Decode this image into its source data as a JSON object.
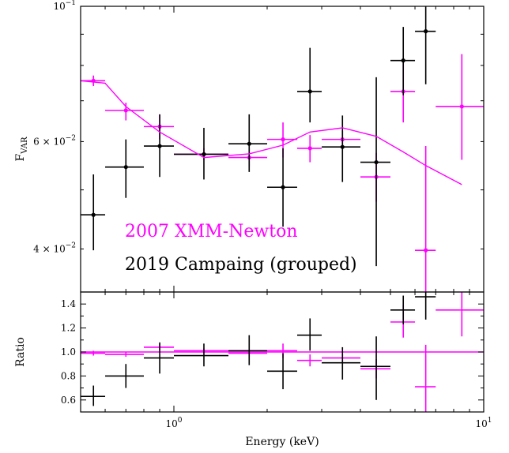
{
  "chart_data": [
    {
      "type": "scatter",
      "panel": "top",
      "ylabel_main": "F",
      "ylabel_sub": "VAR",
      "xscale": "log",
      "yscale": "log",
      "xlim": [
        0.5,
        10
      ],
      "ylim": [
        0.034,
        0.1
      ],
      "ytick_labels": [
        {
          "value": 0.1,
          "mantissa": "10",
          "exp": "−1",
          "text": "10⁻¹"
        },
        {
          "value": 0.06,
          "mantissa": "6 × 10",
          "exp": "−2",
          "text": "6 × 10⁻²"
        },
        {
          "value": 0.04,
          "mantissa": "4 × 10",
          "exp": "−2",
          "text": "4 × 10⁻²"
        }
      ],
      "legend": {
        "placement": "lower-left",
        "entries": [
          "2007 XMM-Newton",
          "2019 Campaing (grouped)"
        ]
      },
      "series": [
        {
          "name": "2007 XMM-Newton",
          "color": "#ff00ff",
          "points": [
            {
              "x": 0.55,
              "xlo": 0.5,
              "xhi": 0.6,
              "y": 0.0755,
              "ylo": 0.074,
              "yhi": 0.077
            },
            {
              "x": 0.7,
              "xlo": 0.6,
              "xhi": 0.8,
              "y": 0.0675,
              "ylo": 0.065,
              "yhi": 0.0695
            },
            {
              "x": 0.9,
              "xlo": 0.8,
              "xhi": 1.0,
              "y": 0.0635,
              "ylo": 0.0605,
              "yhi": 0.0665
            },
            {
              "x": 1.25,
              "xlo": 1.0,
              "xhi": 1.5,
              "y": 0.0572,
              "ylo": 0.056,
              "yhi": 0.0585
            },
            {
              "x": 1.75,
              "xlo": 1.5,
              "xhi": 2.0,
              "y": 0.0565,
              "ylo": 0.0545,
              "yhi": 0.0585
            },
            {
              "x": 2.25,
              "xlo": 2.0,
              "xhi": 2.5,
              "y": 0.0605,
              "ylo": 0.0565,
              "yhi": 0.0645
            },
            {
              "x": 2.75,
              "xlo": 2.5,
              "xhi": 3.0,
              "y": 0.0585,
              "ylo": 0.0555,
              "yhi": 0.0615
            },
            {
              "x": 3.5,
              "xlo": 3.0,
              "xhi": 4.0,
              "y": 0.0605,
              "ylo": 0.0585,
              "yhi": 0.0625
            },
            {
              "x": 4.5,
              "xlo": 4.0,
              "xhi": 5.0,
              "y": 0.0525,
              "ylo": 0.0478,
              "yhi": 0.0575
            },
            {
              "x": 5.5,
              "xlo": 5.0,
              "xhi": 6.0,
              "y": 0.0725,
              "ylo": 0.0645,
              "yhi": 0.0815
            },
            {
              "x": 6.5,
              "xlo": 6.0,
              "xhi": 7.0,
              "y": 0.0398,
              "ylo": 0.034,
              "yhi": 0.059
            },
            {
              "x": 8.5,
              "xlo": 7.0,
              "xhi": 10.0,
              "y": 0.0685,
              "ylo": 0.056,
              "yhi": 0.0835
            }
          ]
        },
        {
          "name": "2019 Campaing (grouped)",
          "color": "#000000",
          "points": [
            {
              "x": 0.55,
              "xlo": 0.5,
              "xhi": 0.6,
              "y": 0.0455,
              "ylo": 0.0398,
              "yhi": 0.053
            },
            {
              "x": 0.7,
              "xlo": 0.6,
              "xhi": 0.8,
              "y": 0.0545,
              "ylo": 0.0485,
              "yhi": 0.0605
            },
            {
              "x": 0.9,
              "xlo": 0.8,
              "xhi": 1.0,
              "y": 0.059,
              "ylo": 0.0525,
              "yhi": 0.0665
            },
            {
              "x": 1.25,
              "xlo": 1.0,
              "xhi": 1.5,
              "y": 0.0572,
              "ylo": 0.052,
              "yhi": 0.0632
            },
            {
              "x": 1.75,
              "xlo": 1.5,
              "xhi": 2.0,
              "y": 0.0595,
              "ylo": 0.0535,
              "yhi": 0.0665
            },
            {
              "x": 2.25,
              "xlo": 2.0,
              "xhi": 2.5,
              "y": 0.0505,
              "ylo": 0.0435,
              "yhi": 0.0585
            },
            {
              "x": 2.75,
              "xlo": 2.5,
              "xhi": 3.0,
              "y": 0.0725,
              "ylo": 0.0645,
              "yhi": 0.0855
            },
            {
              "x": 3.5,
              "xlo": 3.0,
              "xhi": 4.0,
              "y": 0.0588,
              "ylo": 0.0515,
              "yhi": 0.0662
            },
            {
              "x": 4.5,
              "xlo": 4.0,
              "xhi": 5.0,
              "y": 0.0555,
              "ylo": 0.0375,
              "yhi": 0.0765
            },
            {
              "x": 5.5,
              "xlo": 5.0,
              "xhi": 6.0,
              "y": 0.0815,
              "ylo": 0.0715,
              "yhi": 0.0925
            },
            {
              "x": 6.5,
              "xlo": 6.0,
              "xhi": 7.0,
              "y": 0.091,
              "ylo": 0.0745,
              "yhi": 0.1
            }
          ]
        },
        {
          "name": "model",
          "color": "#ff00ff",
          "line": true,
          "points": [
            {
              "x": 0.5,
              "y": 0.0755
            },
            {
              "x": 0.6,
              "y": 0.0748
            },
            {
              "x": 0.7,
              "y": 0.0685
            },
            {
              "x": 0.9,
              "y": 0.0622
            },
            {
              "x": 1.25,
              "y": 0.0565
            },
            {
              "x": 1.75,
              "y": 0.0573
            },
            {
              "x": 2.25,
              "y": 0.0592
            },
            {
              "x": 2.75,
              "y": 0.0622
            },
            {
              "x": 3.5,
              "y": 0.0632
            },
            {
              "x": 4.5,
              "y": 0.0612
            },
            {
              "x": 5.5,
              "y": 0.0577
            },
            {
              "x": 6.5,
              "y": 0.0548
            },
            {
              "x": 8.5,
              "y": 0.051
            }
          ]
        }
      ]
    },
    {
      "type": "scatter",
      "panel": "bottom",
      "ylabel": "Ratio",
      "xlabel": "Energy (keV)",
      "xscale": "log",
      "xlim": [
        0.5,
        10
      ],
      "ylim": [
        0.5,
        1.5
      ],
      "xtick_labels": [
        {
          "value": 1,
          "mantissa": "10",
          "exp": "0",
          "text": "10⁰"
        },
        {
          "value": 10,
          "mantissa": "10",
          "exp": "1",
          "text": "10¹"
        }
      ],
      "ytick_labels": [
        "0.6",
        "0.8",
        "1.0",
        "1.2",
        "1.4"
      ],
      "reference_line": 1.0,
      "series": [
        {
          "name": "2007 XMM-Newton",
          "color": "#ff00ff",
          "points": [
            {
              "x": 0.55,
              "xlo": 0.5,
              "xhi": 0.6,
              "y": 0.99,
              "ylo": 0.97,
              "yhi": 1.01
            },
            {
              "x": 0.7,
              "xlo": 0.6,
              "xhi": 0.8,
              "y": 0.98,
              "ylo": 0.96,
              "yhi": 1.0
            },
            {
              "x": 0.9,
              "xlo": 0.8,
              "xhi": 1.0,
              "y": 1.04,
              "ylo": 1.01,
              "yhi": 1.07
            },
            {
              "x": 1.25,
              "xlo": 1.0,
              "xhi": 1.5,
              "y": 1.01,
              "ylo": 0.99,
              "yhi": 1.03
            },
            {
              "x": 1.75,
              "xlo": 1.5,
              "xhi": 2.0,
              "y": 0.99,
              "ylo": 0.96,
              "yhi": 1.02
            },
            {
              "x": 2.25,
              "xlo": 2.0,
              "xhi": 2.5,
              "y": 1.01,
              "ylo": 0.95,
              "yhi": 1.07
            },
            {
              "x": 2.75,
              "xlo": 2.5,
              "xhi": 3.0,
              "y": 0.93,
              "ylo": 0.88,
              "yhi": 0.98
            },
            {
              "x": 3.5,
              "xlo": 3.0,
              "xhi": 4.0,
              "y": 0.95,
              "ylo": 0.92,
              "yhi": 0.98
            },
            {
              "x": 4.5,
              "xlo": 4.0,
              "xhi": 5.0,
              "y": 0.86,
              "ylo": 0.78,
              "yhi": 0.94
            },
            {
              "x": 5.5,
              "xlo": 5.0,
              "xhi": 6.0,
              "y": 1.25,
              "ylo": 1.12,
              "yhi": 1.39
            },
            {
              "x": 6.5,
              "xlo": 6.0,
              "xhi": 7.0,
              "y": 0.71,
              "ylo": 0.5,
              "yhi": 1.06
            },
            {
              "x": 8.5,
              "xlo": 7.0,
              "xhi": 10.0,
              "y": 1.35,
              "ylo": 1.13,
              "yhi": 1.55
            }
          ]
        },
        {
          "name": "2019 Campaing (grouped)",
          "color": "#000000",
          "points": [
            {
              "x": 0.55,
              "xlo": 0.5,
              "xhi": 0.6,
              "y": 0.63,
              "ylo": 0.55,
              "yhi": 0.72
            },
            {
              "x": 0.7,
              "xlo": 0.6,
              "xhi": 0.8,
              "y": 0.8,
              "ylo": 0.7,
              "yhi": 0.9
            },
            {
              "x": 0.9,
              "xlo": 0.8,
              "xhi": 1.0,
              "y": 0.95,
              "ylo": 0.82,
              "yhi": 1.08
            },
            {
              "x": 1.25,
              "xlo": 1.0,
              "xhi": 1.5,
              "y": 0.97,
              "ylo": 0.88,
              "yhi": 1.07
            },
            {
              "x": 1.75,
              "xlo": 1.5,
              "xhi": 2.0,
              "y": 1.01,
              "ylo": 0.89,
              "yhi": 1.14
            },
            {
              "x": 2.25,
              "xlo": 2.0,
              "xhi": 2.5,
              "y": 0.84,
              "ylo": 0.69,
              "yhi": 0.99
            },
            {
              "x": 2.75,
              "xlo": 2.5,
              "xhi": 3.0,
              "y": 1.14,
              "ylo": 1.01,
              "yhi": 1.28
            },
            {
              "x": 3.5,
              "xlo": 3.0,
              "xhi": 4.0,
              "y": 0.91,
              "ylo": 0.77,
              "yhi": 1.04
            },
            {
              "x": 4.5,
              "xlo": 4.0,
              "xhi": 5.0,
              "y": 0.88,
              "ylo": 0.6,
              "yhi": 1.13
            },
            {
              "x": 5.5,
              "xlo": 5.0,
              "xhi": 6.0,
              "y": 1.35,
              "ylo": 1.23,
              "yhi": 1.47
            },
            {
              "x": 6.5,
              "xlo": 6.0,
              "xhi": 7.0,
              "y": 1.46,
              "ylo": 1.27,
              "yhi": 1.55
            }
          ]
        }
      ]
    }
  ]
}
